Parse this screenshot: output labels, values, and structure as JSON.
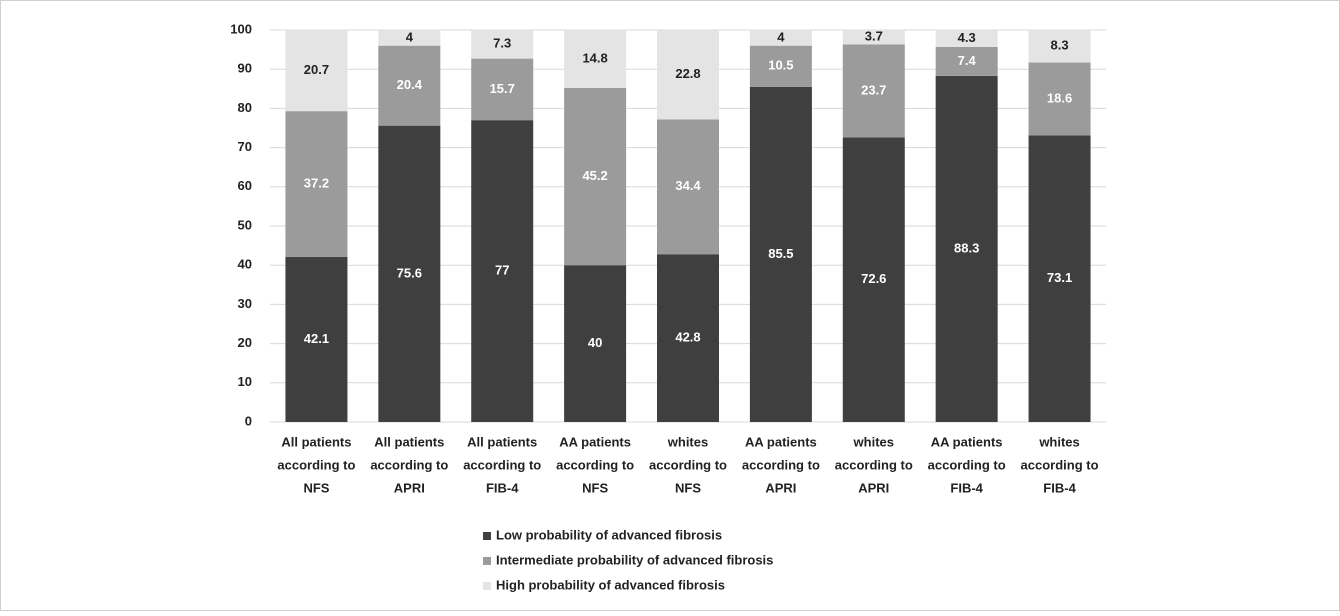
{
  "chart_data": {
    "type": "stacked_bar",
    "categories": [
      [
        "All patients",
        "according to",
        "NFS"
      ],
      [
        "All patients",
        "according to",
        "APRI"
      ],
      [
        "All patients",
        "according to",
        "FIB-4"
      ],
      [
        "AA patients",
        "according to",
        "NFS"
      ],
      [
        "whites",
        "according to",
        "NFS"
      ],
      [
        "AA patients",
        "according to",
        "APRI"
      ],
      [
        "whites",
        "according to",
        "APRI"
      ],
      [
        "AA patients",
        "according to",
        "FIB-4"
      ],
      [
        "whites",
        "according to",
        "FIB-4"
      ]
    ],
    "series": [
      {
        "name": "Low probability of advanced fibrosis",
        "color": "#3f3f3f",
        "label_color": "#ffffff",
        "values": [
          42.1,
          75.6,
          77,
          40,
          42.8,
          85.5,
          72.6,
          88.3,
          73.1
        ]
      },
      {
        "name": "Intermediate probability of advanced fibrosis",
        "color": "#9b9b9b",
        "label_color": "#ffffff",
        "values": [
          37.2,
          20.4,
          15.7,
          45.2,
          34.4,
          10.5,
          23.7,
          7.4,
          18.6
        ]
      },
      {
        "name": "High probability of advanced fibrosis",
        "color": "#e4e4e4",
        "label_color": "#222222",
        "values": [
          20.7,
          4,
          7.3,
          14.8,
          22.8,
          4,
          3.7,
          4.3,
          8.3
        ]
      }
    ],
    "ylim": [
      0,
      100
    ],
    "yticks": [
      0,
      10,
      20,
      30,
      40,
      50,
      60,
      70,
      80,
      90,
      100
    ],
    "grid": true,
    "legend": "bottom"
  }
}
